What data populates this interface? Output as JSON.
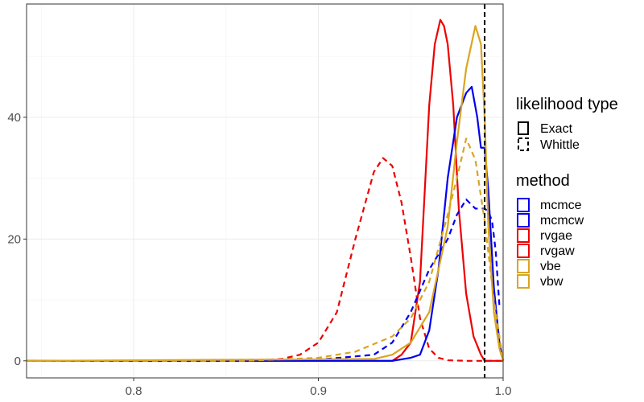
{
  "chart_data": {
    "type": "line",
    "title": "",
    "xlabel": "",
    "ylabel": "",
    "xlim": [
      0.742,
      1.0
    ],
    "ylim": [
      -2.8,
      58.6
    ],
    "x_ticks": [
      {
        "value": 0.8,
        "label": "0.8"
      },
      {
        "value": 0.9,
        "label": "0.9"
      },
      {
        "value": 1.0,
        "label": "1.0"
      }
    ],
    "y_ticks": [
      {
        "value": 0,
        "label": "0"
      },
      {
        "value": 20,
        "label": "20"
      },
      {
        "value": 40,
        "label": "40"
      }
    ],
    "grid": true,
    "legend_position": "right",
    "reference_line": {
      "x": 0.99,
      "style": "dashed",
      "color": "#000000"
    },
    "legend": {
      "linetype_title": "likelihood type",
      "linetype_entries": [
        {
          "label": "Exact",
          "dash": "solid"
        },
        {
          "label": "Whittle",
          "dash": "dashed"
        }
      ],
      "color_title": "method",
      "color_entries": [
        {
          "label": "mcmce",
          "color": "#0000ee"
        },
        {
          "label": "mcmcw",
          "color": "#0000ee"
        },
        {
          "label": "rvgae",
          "color": "#ee0000"
        },
        {
          "label": "rvgaw",
          "color": "#ee0000"
        },
        {
          "label": "vbe",
          "color": "#daa520"
        },
        {
          "label": "vbw",
          "color": "#daa520"
        }
      ]
    },
    "series": [
      {
        "name": "rvgaw",
        "color": "#ee0000",
        "dash": "dashed",
        "x": [
          0.742,
          0.86,
          0.88,
          0.89,
          0.9,
          0.91,
          0.92,
          0.93,
          0.935,
          0.94,
          0.945,
          0.95,
          0.955,
          0.96,
          0.965,
          0.97,
          0.98,
          0.99,
          1.0
        ],
        "y": [
          0,
          0,
          0.3,
          1,
          3,
          8,
          20,
          31,
          33.3,
          32,
          26,
          17,
          7,
          2,
          0.5,
          0.1,
          0,
          0,
          0
        ]
      },
      {
        "name": "rvgae",
        "color": "#ee0000",
        "dash": "solid",
        "x": [
          0.742,
          0.94,
          0.945,
          0.95,
          0.955,
          0.96,
          0.963,
          0.966,
          0.968,
          0.97,
          0.973,
          0.976,
          0.98,
          0.984,
          0.988,
          0.99,
          1.0
        ],
        "y": [
          0,
          0,
          1,
          3,
          13,
          42,
          52,
          56,
          55,
          52,
          42,
          25,
          11,
          4,
          1,
          0,
          0
        ]
      },
      {
        "name": "mcmcw",
        "color": "#0000ee",
        "dash": "dashed",
        "x": [
          0.742,
          0.86,
          0.9,
          0.93,
          0.94,
          0.95,
          0.96,
          0.97,
          0.975,
          0.98,
          0.985,
          0.99,
          0.992,
          0.994,
          0.996,
          0.998
        ],
        "y": [
          0,
          0,
          0.2,
          1,
          3,
          8,
          15,
          20,
          24,
          26.5,
          25,
          25,
          24.5,
          23,
          18,
          9
        ]
      },
      {
        "name": "mcmce",
        "color": "#0000ee",
        "dash": "solid",
        "x": [
          0.742,
          0.94,
          0.95,
          0.955,
          0.96,
          0.965,
          0.97,
          0.975,
          0.98,
          0.983,
          0.986,
          0.988,
          0.99,
          0.992,
          0.995,
          0.998,
          1.0
        ],
        "y": [
          0,
          0,
          0.5,
          1,
          5,
          15,
          30,
          40,
          44,
          45,
          40,
          35,
          35,
          28,
          12,
          3,
          0
        ]
      },
      {
        "name": "vbw",
        "color": "#daa520",
        "dash": "dashed",
        "x": [
          0.742,
          0.86,
          0.9,
          0.92,
          0.94,
          0.95,
          0.96,
          0.97,
          0.975,
          0.98,
          0.985,
          0.99,
          0.995,
          1.0
        ],
        "y": [
          0,
          0,
          0.5,
          1.5,
          4,
          7,
          13,
          24,
          30,
          36.5,
          33,
          23,
          10,
          0
        ]
      },
      {
        "name": "vbe",
        "color": "#daa520",
        "dash": "solid",
        "x": [
          0.742,
          0.93,
          0.94,
          0.95,
          0.96,
          0.97,
          0.975,
          0.98,
          0.985,
          0.988,
          0.99,
          0.992,
          0.995,
          0.998,
          1.0
        ],
        "y": [
          0,
          0.3,
          1,
          3,
          8,
          22,
          36,
          48,
          55,
          52,
          40,
          22,
          8,
          2,
          0
        ]
      }
    ]
  }
}
